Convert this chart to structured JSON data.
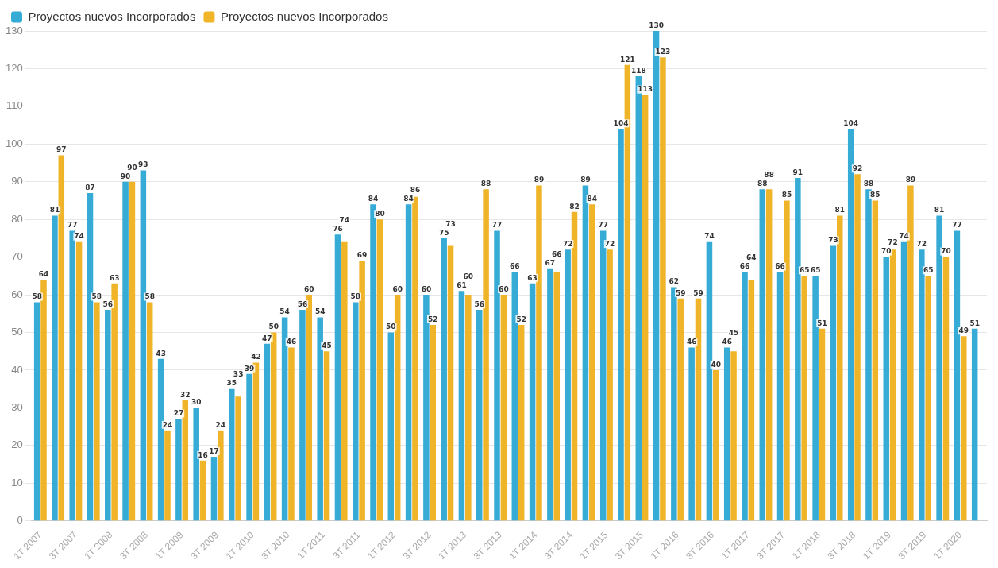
{
  "chart_data": {
    "type": "bar",
    "categories": [
      "1T 2007",
      null,
      "3T 2007",
      null,
      "1T 2008",
      null,
      "3T 2008",
      null,
      "1T 2009",
      null,
      "3T 2009",
      null,
      "1T 2010",
      null,
      "3T 2010",
      null,
      "1T 2011",
      null,
      "3T 2011",
      null,
      "1T 2012",
      null,
      "3T 2012",
      null,
      "1T 2013",
      null,
      "3T 2013",
      null,
      "1T 2014",
      null,
      "3T 2014",
      null,
      "1T 2015",
      null,
      "3T 2015",
      null,
      "1T 2016",
      null,
      "3T 2016",
      null,
      "1T 2017",
      null,
      "3T 2017",
      null,
      "1T 2018",
      null,
      "3T 2018",
      null,
      "1T 2019",
      null,
      "3T 2019",
      null,
      "1T 2020",
      null
    ],
    "series": [
      {
        "name": "Proyectos nuevos Incorporados",
        "color": "#35abd6",
        "values": [
          58,
          81,
          77,
          87,
          56,
          90,
          93,
          43,
          27,
          30,
          17,
          35,
          39,
          47,
          54,
          56,
          54,
          76,
          58,
          84,
          50,
          84,
          60,
          75,
          61,
          56,
          77,
          66,
          63,
          67,
          72,
          89,
          77,
          104,
          118,
          130,
          62,
          46,
          74,
          46,
          66,
          88,
          66,
          91,
          65,
          73,
          104,
          88,
          70,
          74,
          72,
          81,
          77,
          51
        ]
      },
      {
        "name": "Proyectos nuevos Incorporados",
        "color": "#f0b429",
        "values": [
          64,
          97,
          74,
          58,
          63,
          90,
          58,
          24,
          32,
          16,
          24,
          33,
          42,
          50,
          46,
          60,
          45,
          74,
          69,
          80,
          60,
          86,
          52,
          73,
          60,
          88,
          60,
          52,
          89,
          66,
          82,
          84,
          72,
          121,
          113,
          123,
          59,
          59,
          40,
          45,
          64,
          88,
          85,
          65,
          51,
          81,
          92,
          85,
          72,
          89,
          65,
          70,
          49,
          null
        ]
      }
    ],
    "ylim": [
      0,
      130
    ],
    "yticks": [
      0,
      10,
      20,
      30,
      40,
      50,
      60,
      70,
      80,
      90,
      100,
      110,
      120,
      130
    ],
    "grid": "y",
    "legend": "top left",
    "data_labels": true
  }
}
